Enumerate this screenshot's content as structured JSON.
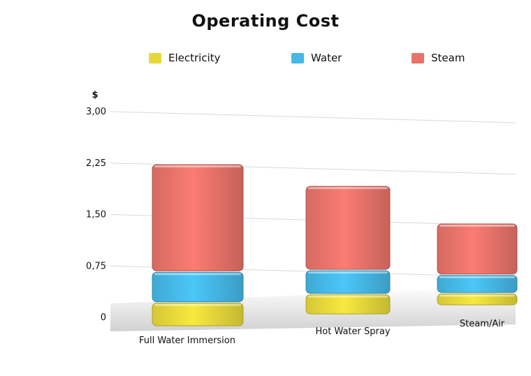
{
  "chart_data": {
    "type": "bar",
    "stacked": true,
    "title": "Operating Cost",
    "ylabel": "$",
    "categories": [
      "Full Water Immersion",
      "Hot Water Spray",
      "Steam/Air"
    ],
    "series": [
      {
        "name": "Electricity",
        "color": "#e6d83a",
        "values": [
          0.35,
          0.3,
          0.18
        ]
      },
      {
        "name": "Water",
        "color": "#45b8e6",
        "values": [
          0.45,
          0.35,
          0.27
        ]
      },
      {
        "name": "Steam",
        "color": "#e8736a",
        "values": [
          1.57,
          1.23,
          0.75
        ]
      }
    ],
    "yticks": [
      "0",
      "0,75",
      "1,50",
      "2,25",
      "3,00"
    ],
    "ytick_values": [
      0,
      0.75,
      1.5,
      2.25,
      3.0
    ],
    "ylim": [
      0,
      3.0
    ],
    "grid": true,
    "legend_position": "top"
  }
}
